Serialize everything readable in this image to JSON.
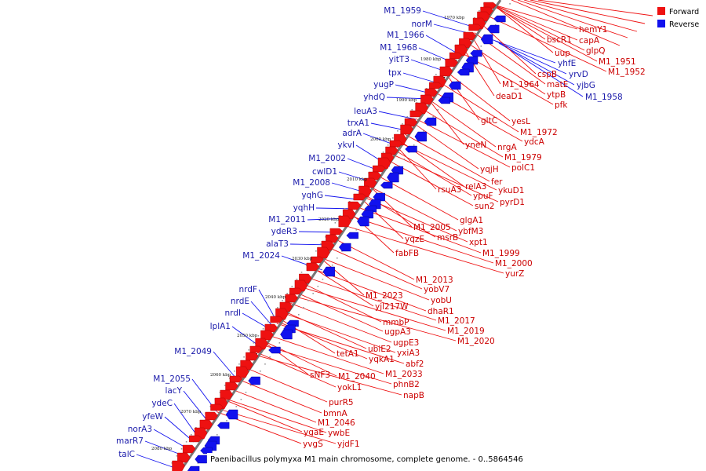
{
  "caption": "Paenibacillus polymyxa M1 main chromosome, complete genome. - 0..5864546",
  "legend": {
    "forward": {
      "label": "Forward",
      "color": "#ee1111"
    },
    "reverse": {
      "label": "Reverse",
      "color": "#1111ee"
    }
  },
  "colors": {
    "axis": "#777777",
    "forward_line": "#ee1111",
    "reverse_line": "#1111ee",
    "forward_text": "#cc0000",
    "reverse_text": "#1a1aaa"
  },
  "kbp_ticks": [
    "1970 kbp",
    "1980 kbp",
    "1990 kbp",
    "2000 kbp",
    "2010 kbp",
    "2020 kbp",
    "2030 kbp",
    "2040 kbp",
    "2050 kbp",
    "2060 kbp",
    "2070 kbp",
    "2080 kbp"
  ],
  "reverse_labels": [
    "M1_1959",
    "norM",
    "M1_1966",
    "M1_1968",
    "yitT3",
    "tpx",
    "yugP",
    "yhdQ",
    "leuA3",
    "trxA1",
    "adrA",
    "ykvI",
    "M1_2002",
    "cwlD1",
    "M1_2008",
    "yqhG",
    "yqhH",
    "M1_2011",
    "ydeR3",
    "alaT3",
    "M1_2024",
    "nrdF",
    "nrdE",
    "nrdI",
    "lplA1",
    "M1_2049",
    "M1_2055",
    "lacY",
    "ydeC",
    "yfeW",
    "norA3",
    "marR7",
    "talC"
  ],
  "reverse_labels_right": [
    "yhfE",
    "yrvD",
    "yjbG",
    "M1_1958"
  ],
  "forward_labels": [
    "hemY1",
    "bscR1",
    "capA",
    "glpQ",
    "uup",
    "M1_1951",
    "M1_1952",
    "cspB",
    "matE",
    "ytpB",
    "M1_1964",
    "pfk",
    "deaD1",
    "gltC",
    "yesL",
    "M1_1972",
    "ydcA",
    "yneN",
    "nrgA",
    "M1_1979",
    "polC1",
    "yqjH",
    "fer",
    "relA3",
    "ykuD1",
    "rsuA3",
    "ypuF",
    "pyrD1",
    "sun2",
    "glgA1",
    "M1_2005",
    "ybfM3",
    "msrB",
    "xpt1",
    "yqzE",
    "fabFB",
    "M1_1999",
    "M1_2000",
    "yurZ",
    "M1_2013",
    "yobV7",
    "yobU",
    "M1_2023",
    "yjl217W",
    "dhaR1",
    "mmbP",
    "M1_2017",
    "ugpA3",
    "M1_2019",
    "ugpE3",
    "M1_2020",
    "ubiE2",
    "yxiA3",
    "yqkA1",
    "abf2",
    "tetA1",
    "M1_2033",
    "phnB2",
    "sNF3",
    "M1_2040",
    "napB",
    "yokL1",
    "purR5",
    "bmnA",
    "M1_2046",
    "ywbE",
    "ygaE",
    "yjdF1",
    "yvgS"
  ]
}
